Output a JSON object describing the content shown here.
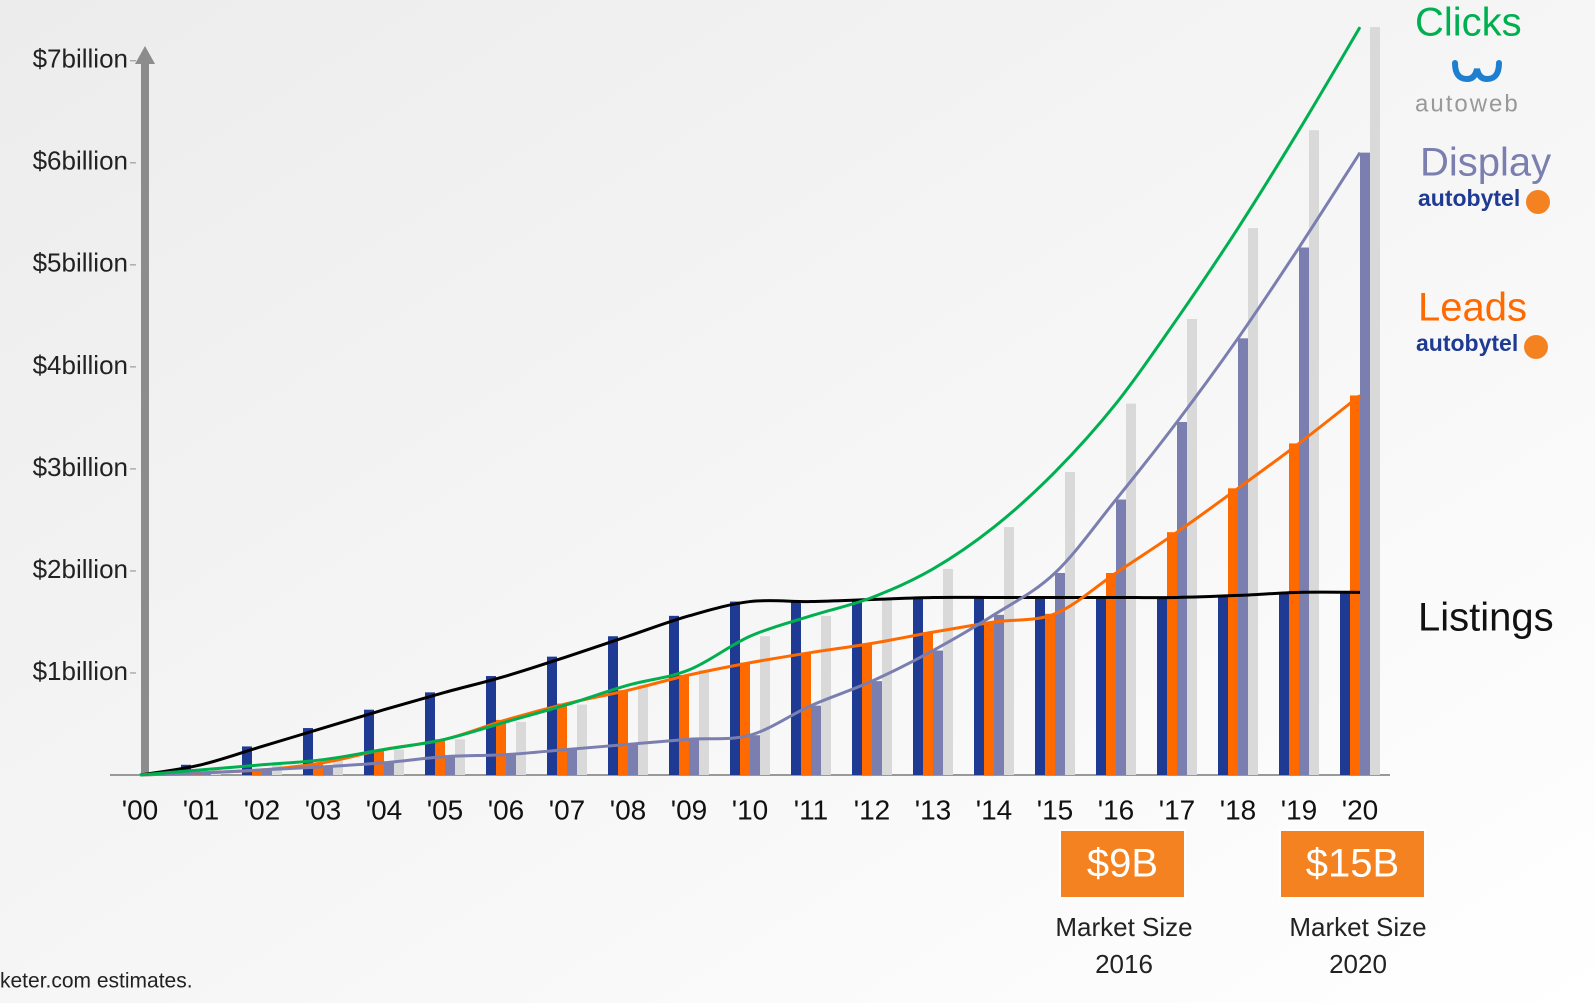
{
  "chart_data": {
    "type": "bar",
    "categories": [
      "'00",
      "'01",
      "'02",
      "'03",
      "'04",
      "'05",
      "'06",
      "'07",
      "'08",
      "'09",
      "'10",
      "'11",
      "'12",
      "'13",
      "'14",
      "'15",
      "'16",
      "'17",
      "'18",
      "'19",
      "'20"
    ],
    "ylim": [
      0,
      7.4
    ],
    "yticks": [
      {
        "value": 1,
        "label": "$1billion"
      },
      {
        "value": 2,
        "label": "$2billion"
      },
      {
        "value": 3,
        "label": "$3billion"
      },
      {
        "value": 4,
        "label": "$4billion"
      },
      {
        "value": 5,
        "label": "$5billion"
      },
      {
        "value": 6,
        "label": "$6billion"
      },
      {
        "value": 7,
        "label": "$7billion"
      }
    ],
    "series": [
      {
        "name": "Listings",
        "color": "#1f3a93",
        "line_color": "#000000",
        "values": [
          0,
          0.1,
          0.28,
          0.46,
          0.64,
          0.81,
          0.97,
          1.16,
          1.36,
          1.56,
          1.7,
          1.7,
          1.72,
          1.74,
          1.74,
          1.74,
          1.74,
          1.74,
          1.76,
          1.79,
          1.79
        ]
      },
      {
        "name": "Leads",
        "brand": "autobytel",
        "color": "#ff6a00",
        "line_color": "#ff6a00",
        "values": [
          0,
          0.02,
          0.05,
          0.12,
          0.25,
          0.35,
          0.54,
          0.7,
          0.83,
          0.98,
          1.1,
          1.2,
          1.29,
          1.4,
          1.5,
          1.58,
          1.98,
          2.38,
          2.81,
          3.25,
          3.72
        ]
      },
      {
        "name": "Display",
        "brand": "autobytel",
        "color": "#7b7fb0",
        "line_color": "#7b7fb0",
        "values": [
          0,
          0.02,
          0.05,
          0.08,
          0.12,
          0.18,
          0.2,
          0.25,
          0.3,
          0.35,
          0.39,
          0.68,
          0.92,
          1.22,
          1.57,
          1.98,
          2.7,
          3.46,
          4.28,
          5.17,
          6.1
        ]
      },
      {
        "name": "Clicks",
        "brand": "autoweb",
        "color": "#d9d9d9",
        "line_color": "#00b050",
        "values": [
          0,
          0.05,
          0.1,
          0.15,
          0.25,
          0.35,
          0.52,
          0.69,
          0.88,
          1.03,
          1.36,
          1.56,
          1.74,
          2.02,
          2.43,
          2.97,
          3.64,
          4.47,
          5.36,
          6.32,
          7.33
        ]
      }
    ],
    "annotations": [
      {
        "label": "$9B",
        "caption": "Market Size",
        "year": "2016"
      },
      {
        "label": "$15B",
        "caption": "Market Size",
        "year": "2020"
      }
    ],
    "footnote": "keter.com estimates."
  }
}
